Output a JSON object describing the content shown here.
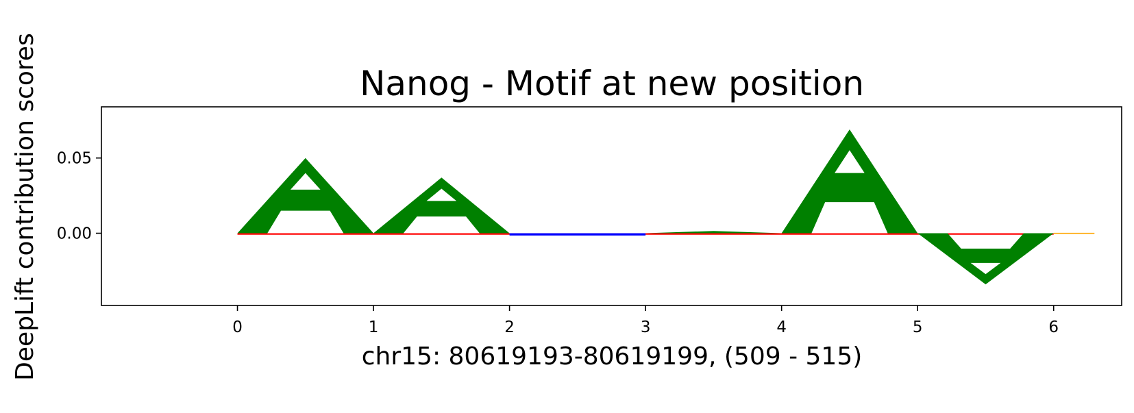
{
  "chart_data": {
    "type": "sequence-logo",
    "title": "Nanog - Motif at new position",
    "xlabel": "chr15: 80619193-80619199, (509 - 515)",
    "ylabel": "DeepLift contribution scores",
    "xlim": [
      -1.0,
      6.5
    ],
    "ylim": [
      -0.048,
      0.084
    ],
    "xticks": [
      0,
      1,
      2,
      3,
      4,
      5,
      6
    ],
    "xtick_labels": [
      "0",
      "1",
      "2",
      "3",
      "4",
      "5",
      "6"
    ],
    "yticks": [
      0.0,
      0.05
    ],
    "ytick_labels": [
      "0.00",
      "0.05"
    ],
    "grid": false,
    "colors": {
      "A": "#008000",
      "C": "#0000ff",
      "G": "#ffa500",
      "T": "#ff0000"
    },
    "positions": [
      {
        "x": 0,
        "letter": "A",
        "value": 0.05
      },
      {
        "x": 1,
        "letter": "A",
        "value": 0.037
      },
      {
        "x": 2,
        "letter": "C",
        "value": -0.0015
      },
      {
        "x": 3,
        "letter": "A",
        "value": 0.0015
      },
      {
        "x": 4,
        "letter": "A",
        "value": 0.069
      },
      {
        "x": 5,
        "letter": "A",
        "value": -0.034
      },
      {
        "x": 6,
        "letter": "G",
        "value": 0.0003
      }
    ],
    "baseline_residuals": [
      {
        "x_start": 0,
        "x_end": 6,
        "letter": "T",
        "value": -0.0006
      }
    ]
  }
}
